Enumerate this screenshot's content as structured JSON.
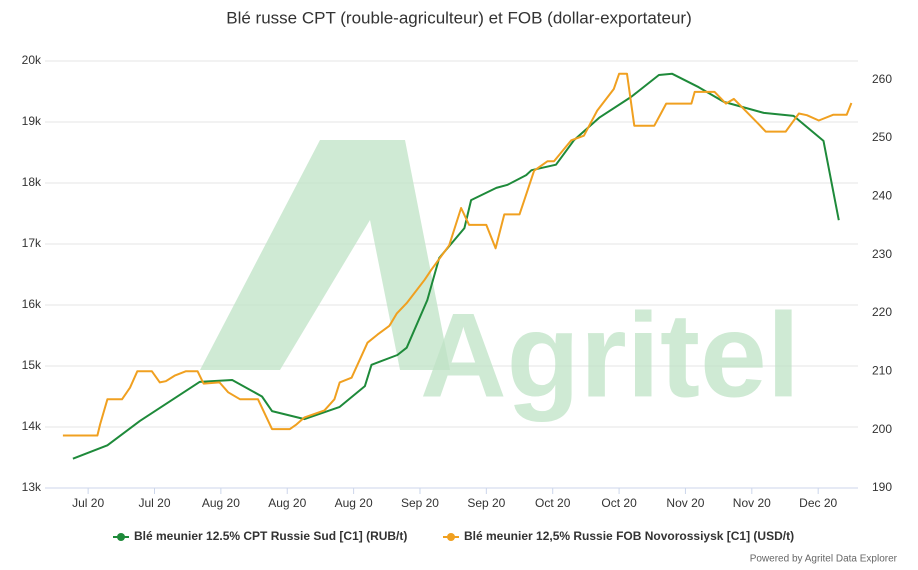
{
  "chart_data": {
    "type": "line",
    "title": "Blé russe CPT (rouble-agriculteur) et FOB (dollar-exportateur)",
    "watermark": "Agritel",
    "credit": "Powered by Agritel Data Explorer",
    "grid": true,
    "legend": "bottom",
    "xlim": [
      -0.65,
      11.6
    ],
    "xticks": [
      {
        "value": 0,
        "label": "Jul 20"
      },
      {
        "value": 1,
        "label": "Jul 20"
      },
      {
        "value": 2,
        "label": "Aug 20"
      },
      {
        "value": 3,
        "label": "Aug 20"
      },
      {
        "value": 4,
        "label": "Aug 20"
      },
      {
        "value": 5,
        "label": "Sep 20"
      },
      {
        "value": 6,
        "label": "Sep 20"
      },
      {
        "value": 7,
        "label": "Oct 20"
      },
      {
        "value": 8,
        "label": "Oct 20"
      },
      {
        "value": 9,
        "label": "Nov 20"
      },
      {
        "value": 10,
        "label": "Nov 20"
      },
      {
        "value": 11,
        "label": "Dec 20"
      }
    ],
    "ylim": [
      13000,
      20000
    ],
    "yticks": [
      {
        "value": 13000,
        "label": "13k"
      },
      {
        "value": 14000,
        "label": "14k"
      },
      {
        "value": 15000,
        "label": "15k"
      },
      {
        "value": 16000,
        "label": "16k"
      },
      {
        "value": 17000,
        "label": "17k"
      },
      {
        "value": 18000,
        "label": "18k"
      },
      {
        "value": 19000,
        "label": "19k"
      },
      {
        "value": 20000,
        "label": "20k"
      }
    ],
    "y2lim": [
      190,
      263.2
    ],
    "y2ticks": [
      190,
      200,
      210,
      220,
      230,
      240,
      250,
      260
    ],
    "series": [
      {
        "name": "Blé meunier 12.5% CPT Russie Sud [C1] (RUB/t)",
        "color": "#1e8a3a",
        "axis": "y",
        "x": [
          -0.23,
          0.29,
          0.78,
          1.68,
          2.17,
          2.62,
          2.77,
          3.26,
          3.79,
          4.17,
          4.27,
          4.66,
          4.8,
          5.11,
          5.29,
          5.67,
          5.77,
          6.15,
          6.32,
          6.6,
          6.68,
          7.05,
          7.32,
          7.7,
          8.18,
          8.6,
          8.8,
          9.2,
          9.58,
          10.18,
          10.63,
          11.08,
          11.31
        ],
        "values": [
          13480,
          13700,
          14100,
          14740,
          14770,
          14500,
          14260,
          14130,
          14330,
          14670,
          15020,
          15180,
          15300,
          16080,
          16770,
          17260,
          17720,
          17920,
          17970,
          18130,
          18210,
          18300,
          18700,
          19070,
          19410,
          19770,
          19790,
          19570,
          19330,
          19150,
          19100,
          18690,
          17390
        ]
      },
      {
        "name": "Blé meunier 12,5% Russie FOB Novorossiysk [C1] (USD/t)",
        "color": "#f0a020",
        "axis": "y2",
        "x": [
          -0.38,
          0.14,
          0.18,
          0.29,
          0.51,
          0.63,
          0.74,
          0.96,
          1.08,
          1.17,
          1.31,
          1.47,
          1.65,
          1.74,
          1.98,
          2.11,
          2.29,
          2.56,
          2.77,
          3.04,
          3.14,
          3.26,
          3.56,
          3.71,
          3.79,
          3.97,
          4.21,
          4.36,
          4.54,
          4.65,
          4.8,
          5.07,
          5.17,
          5.44,
          5.62,
          5.74,
          6.0,
          6.14,
          6.27,
          6.5,
          6.57,
          6.72,
          6.92,
          7.02,
          7.28,
          7.47,
          7.67,
          7.92,
          8.0,
          8.12,
          8.23,
          8.53,
          8.63,
          8.71,
          9.09,
          9.14,
          9.44,
          9.61,
          9.73,
          10.11,
          10.21,
          10.51,
          10.71,
          10.83,
          11.01,
          11.23,
          11.43,
          11.5
        ],
        "values": [
          199.0,
          199.0,
          200.9,
          205.2,
          205.2,
          207.2,
          210.0,
          210.0,
          208.1,
          208.3,
          209.3,
          210.0,
          210.0,
          207.9,
          208.1,
          206.4,
          205.2,
          205.2,
          200.1,
          200.1,
          200.9,
          202.1,
          203.3,
          205.2,
          208.1,
          208.9,
          214.9,
          216.3,
          217.8,
          219.9,
          221.7,
          225.7,
          227.4,
          231.6,
          238.0,
          235.1,
          235.1,
          231.1,
          236.9,
          236.9,
          239.3,
          244.4,
          246.0,
          246.0,
          249.6,
          250.4,
          254.7,
          258.4,
          261.0,
          261.0,
          252.1,
          252.1,
          254.2,
          255.9,
          255.9,
          257.9,
          257.9,
          255.9,
          256.7,
          252.3,
          251.1,
          251.1,
          254.2,
          253.9,
          253.0,
          254.0,
          254.0,
          256.0
        ]
      }
    ]
  }
}
